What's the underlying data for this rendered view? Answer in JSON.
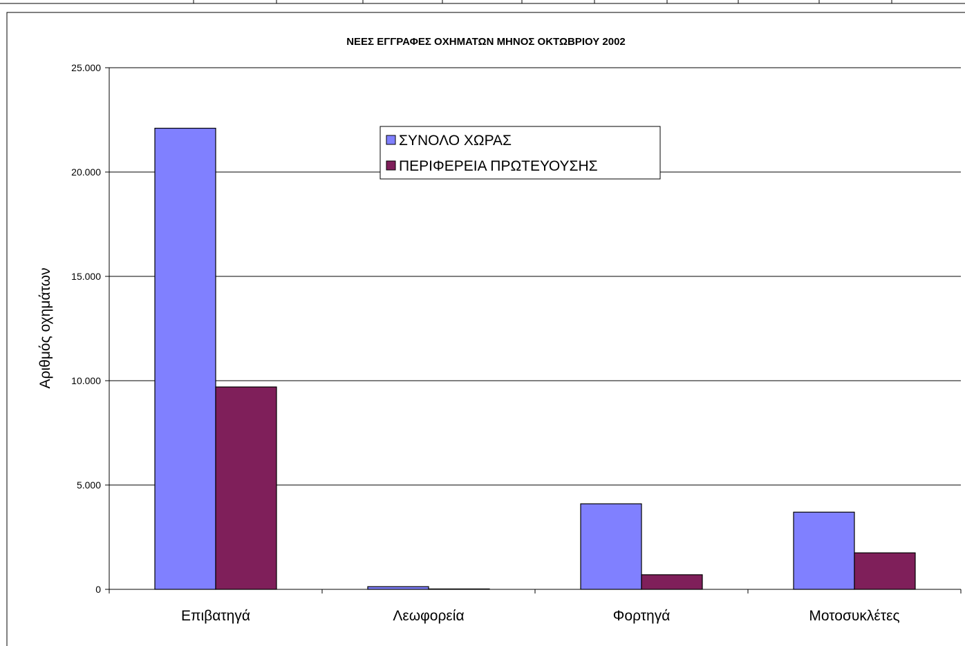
{
  "chart_data": {
    "type": "bar",
    "title": "ΝΕΕΣ ΕΓΓΡΑΦΕΣ ΟΧΗΜΑΤΩΝ ΜΗΝΟΣ ΟΚΤΩΒΡΙΟΥ  2002",
    "xlabel": "",
    "ylabel": "Αριθμός οχημάτων",
    "categories": [
      "Επιβατηγά",
      "Λεωφορεία",
      "Φορτηγά",
      "Μοτοσυκλέτες"
    ],
    "series": [
      {
        "name": "ΣΥΝΟΛΟ ΧΩΡΑΣ",
        "values": [
          22100,
          130,
          4100,
          3700
        ],
        "color": "#8080ff"
      },
      {
        "name": "ΠΕΡΙΦΕΡΕΙΑ ΠΡΩΤΕΥΟΥΣΗΣ",
        "values": [
          9700,
          20,
          700,
          1750
        ],
        "color": "#7f1f5a"
      }
    ],
    "ylim": [
      0,
      25000
    ],
    "yticks": [
      0,
      5000,
      10000,
      15000,
      20000,
      25000
    ],
    "ytick_labels": [
      "0",
      "5.000",
      "10.000",
      "15.000",
      "20.000",
      "25.000"
    ],
    "grid": true,
    "legend_position": "top-center"
  }
}
